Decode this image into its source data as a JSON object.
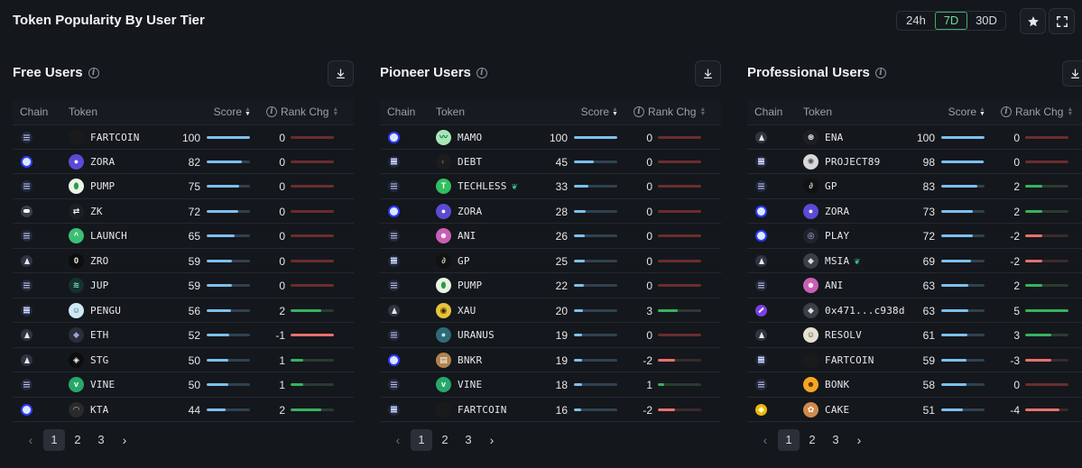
{
  "title": "Token Popularity By User Tier",
  "timeframes": [
    "24h",
    "7D",
    "30D"
  ],
  "selected_timeframe": "7D",
  "columns": {
    "chain": "Chain",
    "token": "Token",
    "score": "Score",
    "rank": "Rank Chg"
  },
  "pagination": {
    "prev": "‹",
    "next": "›",
    "pages": [
      "1",
      "2",
      "3"
    ],
    "current": "1"
  },
  "panels": [
    {
      "title": "Free Users",
      "rows": [
        {
          "chain": "sol",
          "icon": {
            "bg": "#1a1a1a",
            "fg": "#444",
            "glyph": ""
          },
          "name": "FARTCOIN",
          "score": "100",
          "score_pct": 100,
          "rank": "0",
          "rank_pct": 100,
          "dir": "zero"
        },
        {
          "chain": "base",
          "icon": {
            "bg": "#5a4bd6",
            "fg": "#fff",
            "glyph": "●"
          },
          "name": "ZORA",
          "score": "82",
          "score_pct": 82,
          "rank": "0",
          "rank_pct": 100,
          "dir": "zero"
        },
        {
          "chain": "sol",
          "icon": {
            "bg": "#e9f5e6",
            "fg": "#2d9b4a",
            "glyph": "⬮"
          },
          "name": "PUMP",
          "score": "75",
          "score_pct": 75,
          "rank": "0",
          "rank_pct": 100,
          "dir": "zero"
        },
        {
          "chain": "zk",
          "icon": {
            "bg": "#1c1f24",
            "fg": "#fff",
            "glyph": "⇄"
          },
          "name": "ZK",
          "score": "72",
          "score_pct": 72,
          "rank": "0",
          "rank_pct": 100,
          "dir": "zero"
        },
        {
          "chain": "sol",
          "icon": {
            "bg": "#3bbf73",
            "fg": "#fff",
            "glyph": "^"
          },
          "name": "LAUNCH",
          "score": "65",
          "score_pct": 65,
          "rank": "0",
          "rank_pct": 100,
          "dir": "zero"
        },
        {
          "chain": "eth",
          "icon": {
            "bg": "#0d0d0d",
            "fg": "#fff",
            "glyph": "0"
          },
          "name": "ZRO",
          "score": "59",
          "score_pct": 59,
          "rank": "0",
          "rank_pct": 100,
          "dir": "zero"
        },
        {
          "chain": "sol",
          "icon": {
            "bg": "#15312f",
            "fg": "#7ee0b5",
            "glyph": "≋"
          },
          "name": "JUP",
          "score": "59",
          "score_pct": 59,
          "rank": "0",
          "rank_pct": 100,
          "dir": "zero"
        },
        {
          "chain": "sol",
          "icon": {
            "bg": "#cfe8f5",
            "fg": "#2a5d7a",
            "glyph": "☺"
          },
          "name": "PENGU",
          "score": "56",
          "score_pct": 56,
          "rank": "2",
          "rank_pct": 70,
          "dir": "pos"
        },
        {
          "chain": "eth",
          "icon": {
            "bg": "#2a2e3a",
            "fg": "#9aa6d8",
            "glyph": "◆"
          },
          "name": "ETH",
          "score": "52",
          "score_pct": 52,
          "rank": "-1",
          "rank_pct": 100,
          "dir": "neg"
        },
        {
          "chain": "eth",
          "icon": {
            "bg": "#0d0d0d",
            "fg": "#fff",
            "glyph": "◈"
          },
          "name": "STG",
          "score": "50",
          "score_pct": 50,
          "rank": "1",
          "rank_pct": 30,
          "dir": "pos"
        },
        {
          "chain": "sol",
          "icon": {
            "bg": "#27a86a",
            "fg": "#fff",
            "glyph": "v"
          },
          "name": "VINE",
          "score": "50",
          "score_pct": 50,
          "rank": "1",
          "rank_pct": 30,
          "dir": "pos"
        },
        {
          "chain": "base",
          "icon": {
            "bg": "#2a2a2a",
            "fg": "#c9c3b0",
            "glyph": "◠"
          },
          "name": "KTA",
          "score": "44",
          "score_pct": 44,
          "rank": "2",
          "rank_pct": 70,
          "dir": "pos"
        }
      ]
    },
    {
      "title": "Pioneer Users",
      "rows": [
        {
          "chain": "base",
          "icon": {
            "bg": "#a8e6b8",
            "fg": "#1d6b3a",
            "glyph": "〰"
          },
          "name": "MAMO",
          "score": "100",
          "score_pct": 100,
          "rank": "0",
          "rank_pct": 100,
          "dir": "zero"
        },
        {
          "chain": "sol",
          "icon": {
            "bg": "#1c1c1c",
            "fg": "#555",
            "glyph": "◐"
          },
          "name": "DEBT",
          "score": "45",
          "score_pct": 45,
          "rank": "0",
          "rank_pct": 100,
          "dir": "zero"
        },
        {
          "chain": "sol",
          "icon": {
            "bg": "#2fbf5e",
            "fg": "#fff",
            "glyph": "T"
          },
          "name": "TECHLESS",
          "sprout": true,
          "score": "33",
          "score_pct": 33,
          "rank": "0",
          "rank_pct": 100,
          "dir": "zero"
        },
        {
          "chain": "base",
          "icon": {
            "bg": "#5a4bd6",
            "fg": "#fff",
            "glyph": "●"
          },
          "name": "ZORA",
          "score": "28",
          "score_pct": 28,
          "rank": "0",
          "rank_pct": 100,
          "dir": "zero"
        },
        {
          "chain": "sol",
          "icon": {
            "bg": "#c95fb5",
            "fg": "#fff",
            "glyph": "☻"
          },
          "name": "ANI",
          "score": "26",
          "score_pct": 26,
          "rank": "0",
          "rank_pct": 100,
          "dir": "zero"
        },
        {
          "chain": "sol",
          "icon": {
            "bg": "#111",
            "fg": "#ccc",
            "glyph": "∂"
          },
          "name": "GP",
          "score": "25",
          "score_pct": 25,
          "rank": "0",
          "rank_pct": 100,
          "dir": "zero"
        },
        {
          "chain": "sol",
          "icon": {
            "bg": "#e9f5e6",
            "fg": "#2d9b4a",
            "glyph": "⬮"
          },
          "name": "PUMP",
          "score": "22",
          "score_pct": 22,
          "rank": "0",
          "rank_pct": 100,
          "dir": "zero"
        },
        {
          "chain": "eth",
          "icon": {
            "bg": "#e8c33a",
            "fg": "#3a2d00",
            "glyph": "◉"
          },
          "name": "XAU",
          "score": "20",
          "score_pct": 20,
          "rank": "3",
          "rank_pct": 45,
          "dir": "pos"
        },
        {
          "chain": "sol",
          "icon": {
            "bg": "#2f6a78",
            "fg": "#bfe9f2",
            "glyph": "●"
          },
          "name": "URANUS",
          "score": "19",
          "score_pct": 19,
          "rank": "0",
          "rank_pct": 100,
          "dir": "zero"
        },
        {
          "chain": "base",
          "icon": {
            "bg": "#b2834e",
            "fg": "#fff",
            "glyph": "▤"
          },
          "name": "BNKR",
          "score": "19",
          "score_pct": 19,
          "rank": "-2",
          "rank_pct": 40,
          "dir": "neg"
        },
        {
          "chain": "sol",
          "icon": {
            "bg": "#27a86a",
            "fg": "#fff",
            "glyph": "v"
          },
          "name": "VINE",
          "score": "18",
          "score_pct": 18,
          "rank": "1",
          "rank_pct": 15,
          "dir": "pos"
        },
        {
          "chain": "sol",
          "icon": {
            "bg": "#1a1a1a",
            "fg": "#444",
            "glyph": ""
          },
          "name": "FARTCOIN",
          "score": "16",
          "score_pct": 16,
          "rank": "-2",
          "rank_pct": 40,
          "dir": "neg"
        }
      ]
    },
    {
      "title": "Professional Users",
      "rows": [
        {
          "chain": "eth",
          "icon": {
            "bg": "#1c1f24",
            "fg": "#fff",
            "glyph": "⊛"
          },
          "name": "ENA",
          "score": "100",
          "score_pct": 100,
          "rank": "0",
          "rank_pct": 100,
          "dir": "zero"
        },
        {
          "chain": "sol",
          "icon": {
            "bg": "#d8d8d8",
            "fg": "#555",
            "glyph": "✺"
          },
          "name": "PROJECT89",
          "score": "98",
          "score_pct": 98,
          "rank": "0",
          "rank_pct": 100,
          "dir": "zero"
        },
        {
          "chain": "sol",
          "icon": {
            "bg": "#111",
            "fg": "#ccc",
            "glyph": "∂"
          },
          "name": "GP",
          "score": "83",
          "score_pct": 83,
          "rank": "2",
          "rank_pct": 40,
          "dir": "pos"
        },
        {
          "chain": "base",
          "icon": {
            "bg": "#5a4bd6",
            "fg": "#fff",
            "glyph": "●"
          },
          "name": "ZORA",
          "score": "73",
          "score_pct": 73,
          "rank": "2",
          "rank_pct": 40,
          "dir": "pos"
        },
        {
          "chain": "base",
          "icon": {
            "bg": "#20242c",
            "fg": "#b6c0ff",
            "glyph": "◎"
          },
          "name": "PLAY",
          "score": "72",
          "score_pct": 72,
          "rank": "-2",
          "rank_pct": 40,
          "dir": "neg"
        },
        {
          "chain": "eth",
          "icon": {
            "bg": "#3a3f48",
            "fg": "#ddd",
            "glyph": "◆"
          },
          "name": "MSIA",
          "sprout": true,
          "score": "69",
          "score_pct": 69,
          "rank": "-2",
          "rank_pct": 40,
          "dir": "neg"
        },
        {
          "chain": "sol",
          "icon": {
            "bg": "#c95fb5",
            "fg": "#fff",
            "glyph": "☻"
          },
          "name": "ANI",
          "score": "63",
          "score_pct": 63,
          "rank": "2",
          "rank_pct": 40,
          "dir": "pos"
        },
        {
          "chain": "arb",
          "icon": {
            "bg": "#3a3f48",
            "fg": "#ddd",
            "glyph": "◆"
          },
          "name": "0x471...c938d",
          "score": "63",
          "score_pct": 63,
          "rank": "5",
          "rank_pct": 100,
          "dir": "pos"
        },
        {
          "chain": "eth",
          "icon": {
            "bg": "#e6e0d0",
            "fg": "#333",
            "glyph": "☺"
          },
          "name": "RESOLV",
          "score": "61",
          "score_pct": 61,
          "rank": "3",
          "rank_pct": 60,
          "dir": "pos"
        },
        {
          "chain": "sol",
          "icon": {
            "bg": "#1a1a1a",
            "fg": "#444",
            "glyph": ""
          },
          "name": "FARTCOIN",
          "score": "59",
          "score_pct": 59,
          "rank": "-3",
          "rank_pct": 60,
          "dir": "neg"
        },
        {
          "chain": "sol",
          "icon": {
            "bg": "#f5a623",
            "fg": "#5a2d00",
            "glyph": "☻"
          },
          "name": "BONK",
          "score": "58",
          "score_pct": 58,
          "rank": "0",
          "rank_pct": 100,
          "dir": "zero"
        },
        {
          "chain": "bsc",
          "icon": {
            "bg": "#d18a4a",
            "fg": "#fff",
            "glyph": "✿"
          },
          "name": "CAKE",
          "score": "51",
          "score_pct": 51,
          "rank": "-4",
          "rank_pct": 80,
          "dir": "neg"
        }
      ]
    }
  ]
}
